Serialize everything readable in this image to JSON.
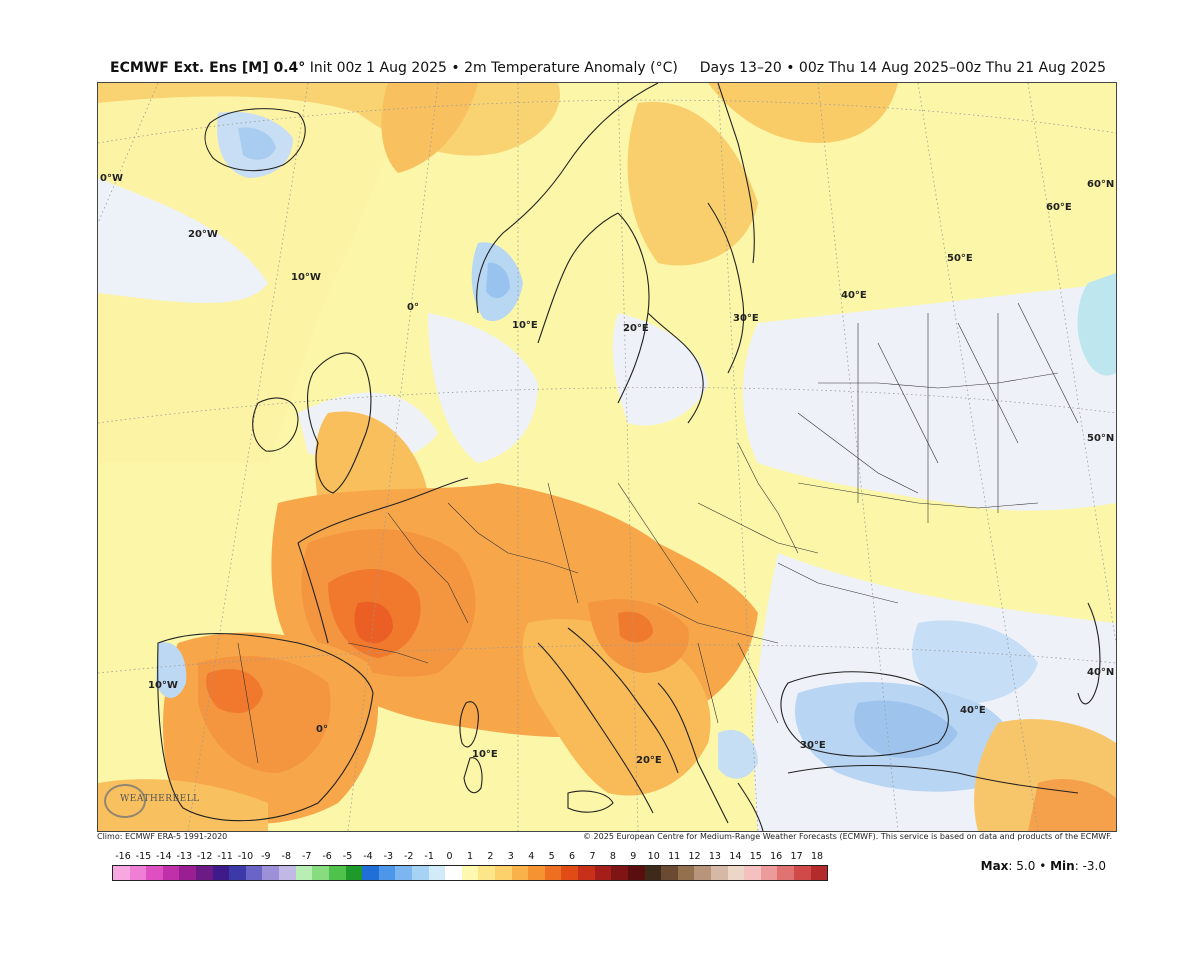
{
  "header": {
    "product": "ECMWF Ext. Ens [M] 0.4°",
    "init": "Init 00z 1 Aug 2025",
    "sep": "•",
    "field": "2m Temperature Anomaly (°C)",
    "valid": "Days 13–20 • 00z Thu 14 Aug 2025–00z Thu 21 Aug 2025"
  },
  "map": {
    "lon_labels": [
      "0°W",
      "20°W",
      "10°W",
      "0°",
      "10°E",
      "20°E",
      "30°E",
      "40°E",
      "50°E",
      "60°E",
      "10°W",
      "0°",
      "10°E",
      "20°E",
      "30°E",
      "40°E"
    ],
    "lat_labels": [
      "60°N",
      "50°N",
      "40°N"
    ]
  },
  "credits": {
    "climo": "Climo: ECMWF ERA-5 1991-2020",
    "copyright": "© 2025 European Centre for Medium-Range Weather Forecasts (ECMWF). This service is based on data and products of the ECMWF.",
    "logo_text": "WEATHERBELL"
  },
  "colorbar": {
    "labels": [
      "-16",
      "-15",
      "-14",
      "-13",
      "-12",
      "-11",
      "-10",
      "-9",
      "-8",
      "-7",
      "-6",
      "-5",
      "-4",
      "-3",
      "-2",
      "-1",
      "0",
      "1",
      "2",
      "3",
      "4",
      "5",
      "6",
      "7",
      "8",
      "9",
      "10",
      "11",
      "12",
      "13",
      "14",
      "15",
      "16",
      "17",
      "18"
    ],
    "colors": [
      "#f7a8e0",
      "#ef7fd5",
      "#de4fc2",
      "#c030ab",
      "#9a1f92",
      "#6c1a86",
      "#3e1a8a",
      "#3b3aa8",
      "#6a64c6",
      "#9c90d8",
      "#c2b8e6",
      "#b8eeb4",
      "#86dc7e",
      "#4ec24a",
      "#1e9a2a",
      "#1f6fd6",
      "#4c97ea",
      "#7bb6f0",
      "#a6d2f4",
      "#d2ebf8",
      "#ffffff",
      "#fff8b0",
      "#fde68a",
      "#fcd06a",
      "#f9b24a",
      "#f59332",
      "#ef6f22",
      "#e04b16",
      "#c8301a",
      "#a51e1a",
      "#7f1414",
      "#5a0e0e",
      "#3e2a1a",
      "#6b4a32",
      "#94704f",
      "#b8947a",
      "#d6b8a6",
      "#ecd6c8",
      "#f4c0c0",
      "#ec9a9a",
      "#e07272",
      "#d04a4a",
      "#b52a2a"
    ]
  },
  "stats": {
    "max_label": "Max",
    "max_value": ": 5.0",
    "sep": "•",
    "min_label": "Min",
    "min_value": ": -3.0"
  }
}
